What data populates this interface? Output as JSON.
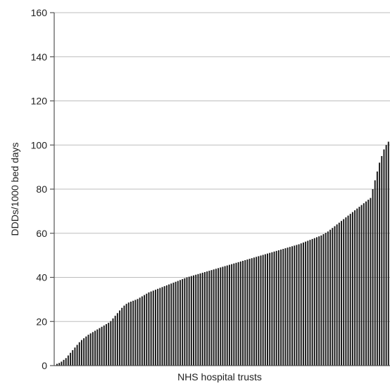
{
  "chart_data": {
    "type": "bar",
    "title": "",
    "xlabel": "NHS hospital trusts",
    "ylabel": "DDDs/1000 bed days",
    "ylim": [
      0,
      160
    ],
    "yticks": [
      0,
      20,
      40,
      60,
      80,
      100,
      120,
      140,
      160
    ],
    "ytick_labels": [
      "0",
      "20",
      "40",
      "60",
      "80",
      "100",
      "120",
      "140",
      "160"
    ],
    "grid": "horizontal",
    "sorted": "ascending",
    "values": [
      0.8,
      1.2,
      1.8,
      2.6,
      3.4,
      4.6,
      5.8,
      7.0,
      8.2,
      9.4,
      10.6,
      11.6,
      12.4,
      13.2,
      14.0,
      14.6,
      15.2,
      15.8,
      16.4,
      17.0,
      17.6,
      18.2,
      18.8,
      19.4,
      20.2,
      21.4,
      22.6,
      23.8,
      25.0,
      26.2,
      27.2,
      28.0,
      28.6,
      29.0,
      29.4,
      29.8,
      30.2,
      30.8,
      31.4,
      32.0,
      32.6,
      33.2,
      33.6,
      34.0,
      34.4,
      34.8,
      35.2,
      35.6,
      36.0,
      36.4,
      36.8,
      37.2,
      37.6,
      38.0,
      38.4,
      38.8,
      39.2,
      39.6,
      40.0,
      40.3,
      40.6,
      40.9,
      41.2,
      41.5,
      41.8,
      42.1,
      42.4,
      42.7,
      43.0,
      43.3,
      43.6,
      43.9,
      44.2,
      44.5,
      44.8,
      45.1,
      45.4,
      45.7,
      46.0,
      46.3,
      46.6,
      46.9,
      47.2,
      47.5,
      47.8,
      48.1,
      48.4,
      48.7,
      49.0,
      49.3,
      49.6,
      49.9,
      50.2,
      50.5,
      50.8,
      51.1,
      51.4,
      51.7,
      52.0,
      52.3,
      52.6,
      52.9,
      53.2,
      53.5,
      53.8,
      54.1,
      54.4,
      54.7,
      55.0,
      55.4,
      55.8,
      56.2,
      56.6,
      57.0,
      57.4,
      57.8,
      58.2,
      58.6,
      59.0,
      59.6,
      60.2,
      60.8,
      61.6,
      62.4,
      63.2,
      64.0,
      64.8,
      65.6,
      66.4,
      67.2,
      68.0,
      68.8,
      69.6,
      70.4,
      71.2,
      72.0,
      72.8,
      73.6,
      74.4,
      75.2,
      76.0,
      80.0,
      84.0,
      88.0,
      92.0,
      95.0,
      98.0,
      100.0,
      101.5
    ]
  }
}
